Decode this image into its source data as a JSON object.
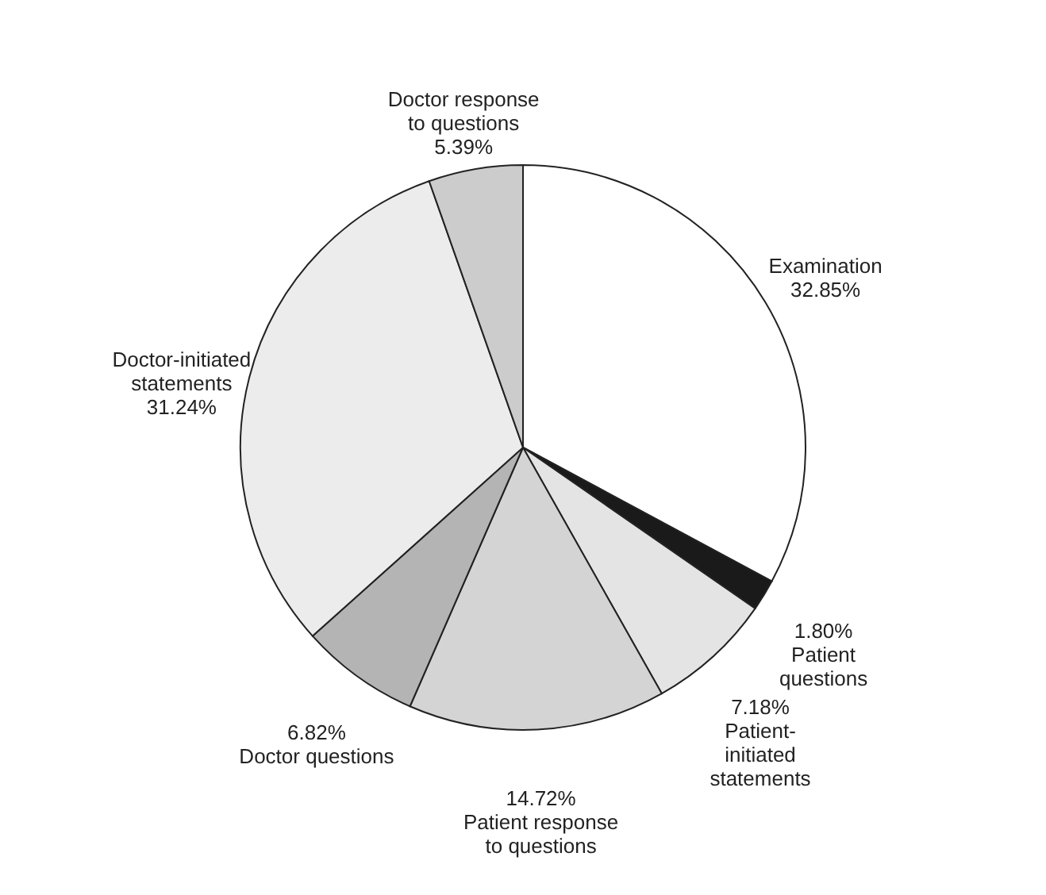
{
  "chart_data": {
    "type": "pie",
    "categories": [
      "Examination",
      "Patient questions",
      "Patient-initiated statements",
      "Patient response to questions",
      "Doctor questions",
      "Doctor-initiated statements",
      "Doctor response to questions"
    ],
    "values": [
      32.85,
      1.8,
      7.18,
      14.72,
      6.82,
      31.24,
      5.39
    ],
    "colors": [
      "#ffffff",
      "#1a1a1a",
      "#e4e4e4",
      "#d4d4d4",
      "#b4b4b4",
      "#ececec",
      "#cccccc"
    ],
    "value_labels": [
      "32.85%",
      "1.80%",
      "7.18%",
      "14.72%",
      "6.82%",
      "31.24%",
      "5.39%"
    ],
    "legend": false
  }
}
